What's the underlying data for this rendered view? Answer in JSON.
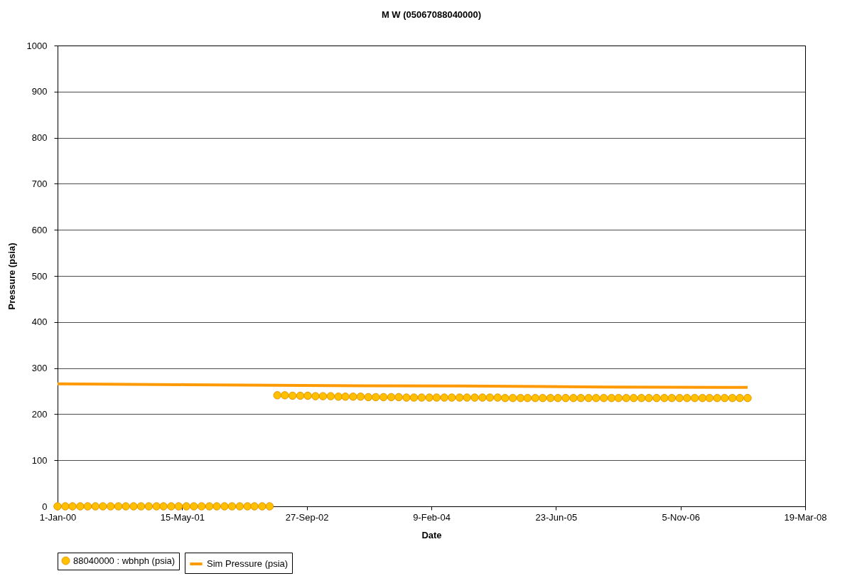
{
  "chart_data": {
    "type": "scatter",
    "title": "M W (05067088040000)",
    "xlabel": "Date",
    "ylabel": "Pressure (psia)",
    "xlim": [
      "2000-01-01",
      "2008-03-19"
    ],
    "xticks": [
      {
        "value": "2000-01-01",
        "label": "1-Jan-00"
      },
      {
        "value": "2001-05-15",
        "label": "15-May-01"
      },
      {
        "value": "2002-09-27",
        "label": "27-Sep-02"
      },
      {
        "value": "2004-02-09",
        "label": "9-Feb-04"
      },
      {
        "value": "2005-06-23",
        "label": "23-Jun-05"
      },
      {
        "value": "2006-11-05",
        "label": "5-Nov-06"
      },
      {
        "value": "2008-03-19",
        "label": "19-Mar-08"
      }
    ],
    "ylim": [
      0,
      1000
    ],
    "yticks": [
      0,
      100,
      200,
      300,
      400,
      500,
      600,
      700,
      800,
      900,
      1000
    ],
    "grid": "y",
    "legend": "bottom",
    "series": [
      {
        "name": "88040000 : wbhph (psia)",
        "marker": "circle",
        "color": "#ffc000",
        "x": [
          "2000-01",
          "2000-02",
          "2000-03",
          "2000-04",
          "2000-05",
          "2000-06",
          "2000-07",
          "2000-08",
          "2000-09",
          "2000-10",
          "2000-11",
          "2000-12",
          "2001-01",
          "2001-02",
          "2001-03",
          "2001-04",
          "2001-05",
          "2001-06",
          "2001-07",
          "2001-08",
          "2001-09",
          "2001-10",
          "2001-11",
          "2001-12",
          "2002-01",
          "2002-02",
          "2002-03",
          "2002-04",
          "2002-05",
          "2002-06",
          "2002-07",
          "2002-08",
          "2002-09",
          "2002-10",
          "2002-11",
          "2002-12",
          "2003-01",
          "2003-02",
          "2003-03",
          "2003-04",
          "2003-05",
          "2003-06",
          "2003-07",
          "2003-08",
          "2003-09",
          "2003-10",
          "2003-11",
          "2003-12",
          "2004-01",
          "2004-02",
          "2004-03",
          "2004-04",
          "2004-05",
          "2004-06",
          "2004-07",
          "2004-08",
          "2004-09",
          "2004-10",
          "2004-11",
          "2004-12",
          "2005-01",
          "2005-02",
          "2005-03",
          "2005-04",
          "2005-05",
          "2005-06",
          "2005-07",
          "2005-08",
          "2005-09",
          "2005-10",
          "2005-11",
          "2005-12",
          "2006-01",
          "2006-02",
          "2006-03",
          "2006-04",
          "2006-05",
          "2006-06",
          "2006-07",
          "2006-08",
          "2006-09",
          "2006-10",
          "2006-11",
          "2006-12",
          "2007-01",
          "2007-02",
          "2007-03",
          "2007-04",
          "2007-05",
          "2007-06",
          "2007-07",
          "2007-08"
        ],
        "values": [
          0,
          0,
          0,
          0,
          0,
          0,
          0,
          0,
          0,
          0,
          0,
          0,
          0,
          0,
          0,
          0,
          0,
          0,
          0,
          0,
          0,
          0,
          0,
          0,
          0,
          0,
          0,
          0,
          0,
          241,
          241,
          240,
          240,
          240,
          239,
          239,
          239,
          238,
          238,
          238,
          238,
          237,
          237,
          237,
          237,
          237,
          236,
          236,
          236,
          236,
          236,
          236,
          236,
          236,
          236,
          236,
          236,
          236,
          236,
          235,
          235,
          235,
          235,
          235,
          235,
          235,
          235,
          235,
          235,
          235,
          235,
          235,
          235,
          235,
          235,
          235,
          235,
          235,
          235,
          235,
          235,
          235,
          235,
          235,
          235,
          235,
          235,
          235,
          235,
          235,
          235,
          235
        ]
      },
      {
        "name": "Sim Pressure (psia)",
        "type": "line",
        "line_style": "solid",
        "color": "#ff9900",
        "x": [
          "2000-01",
          "2001-06",
          "2003-01",
          "2004-06",
          "2006-01",
          "2007-08"
        ],
        "values": [
          266,
          264,
          262,
          261,
          259,
          258
        ]
      }
    ]
  }
}
